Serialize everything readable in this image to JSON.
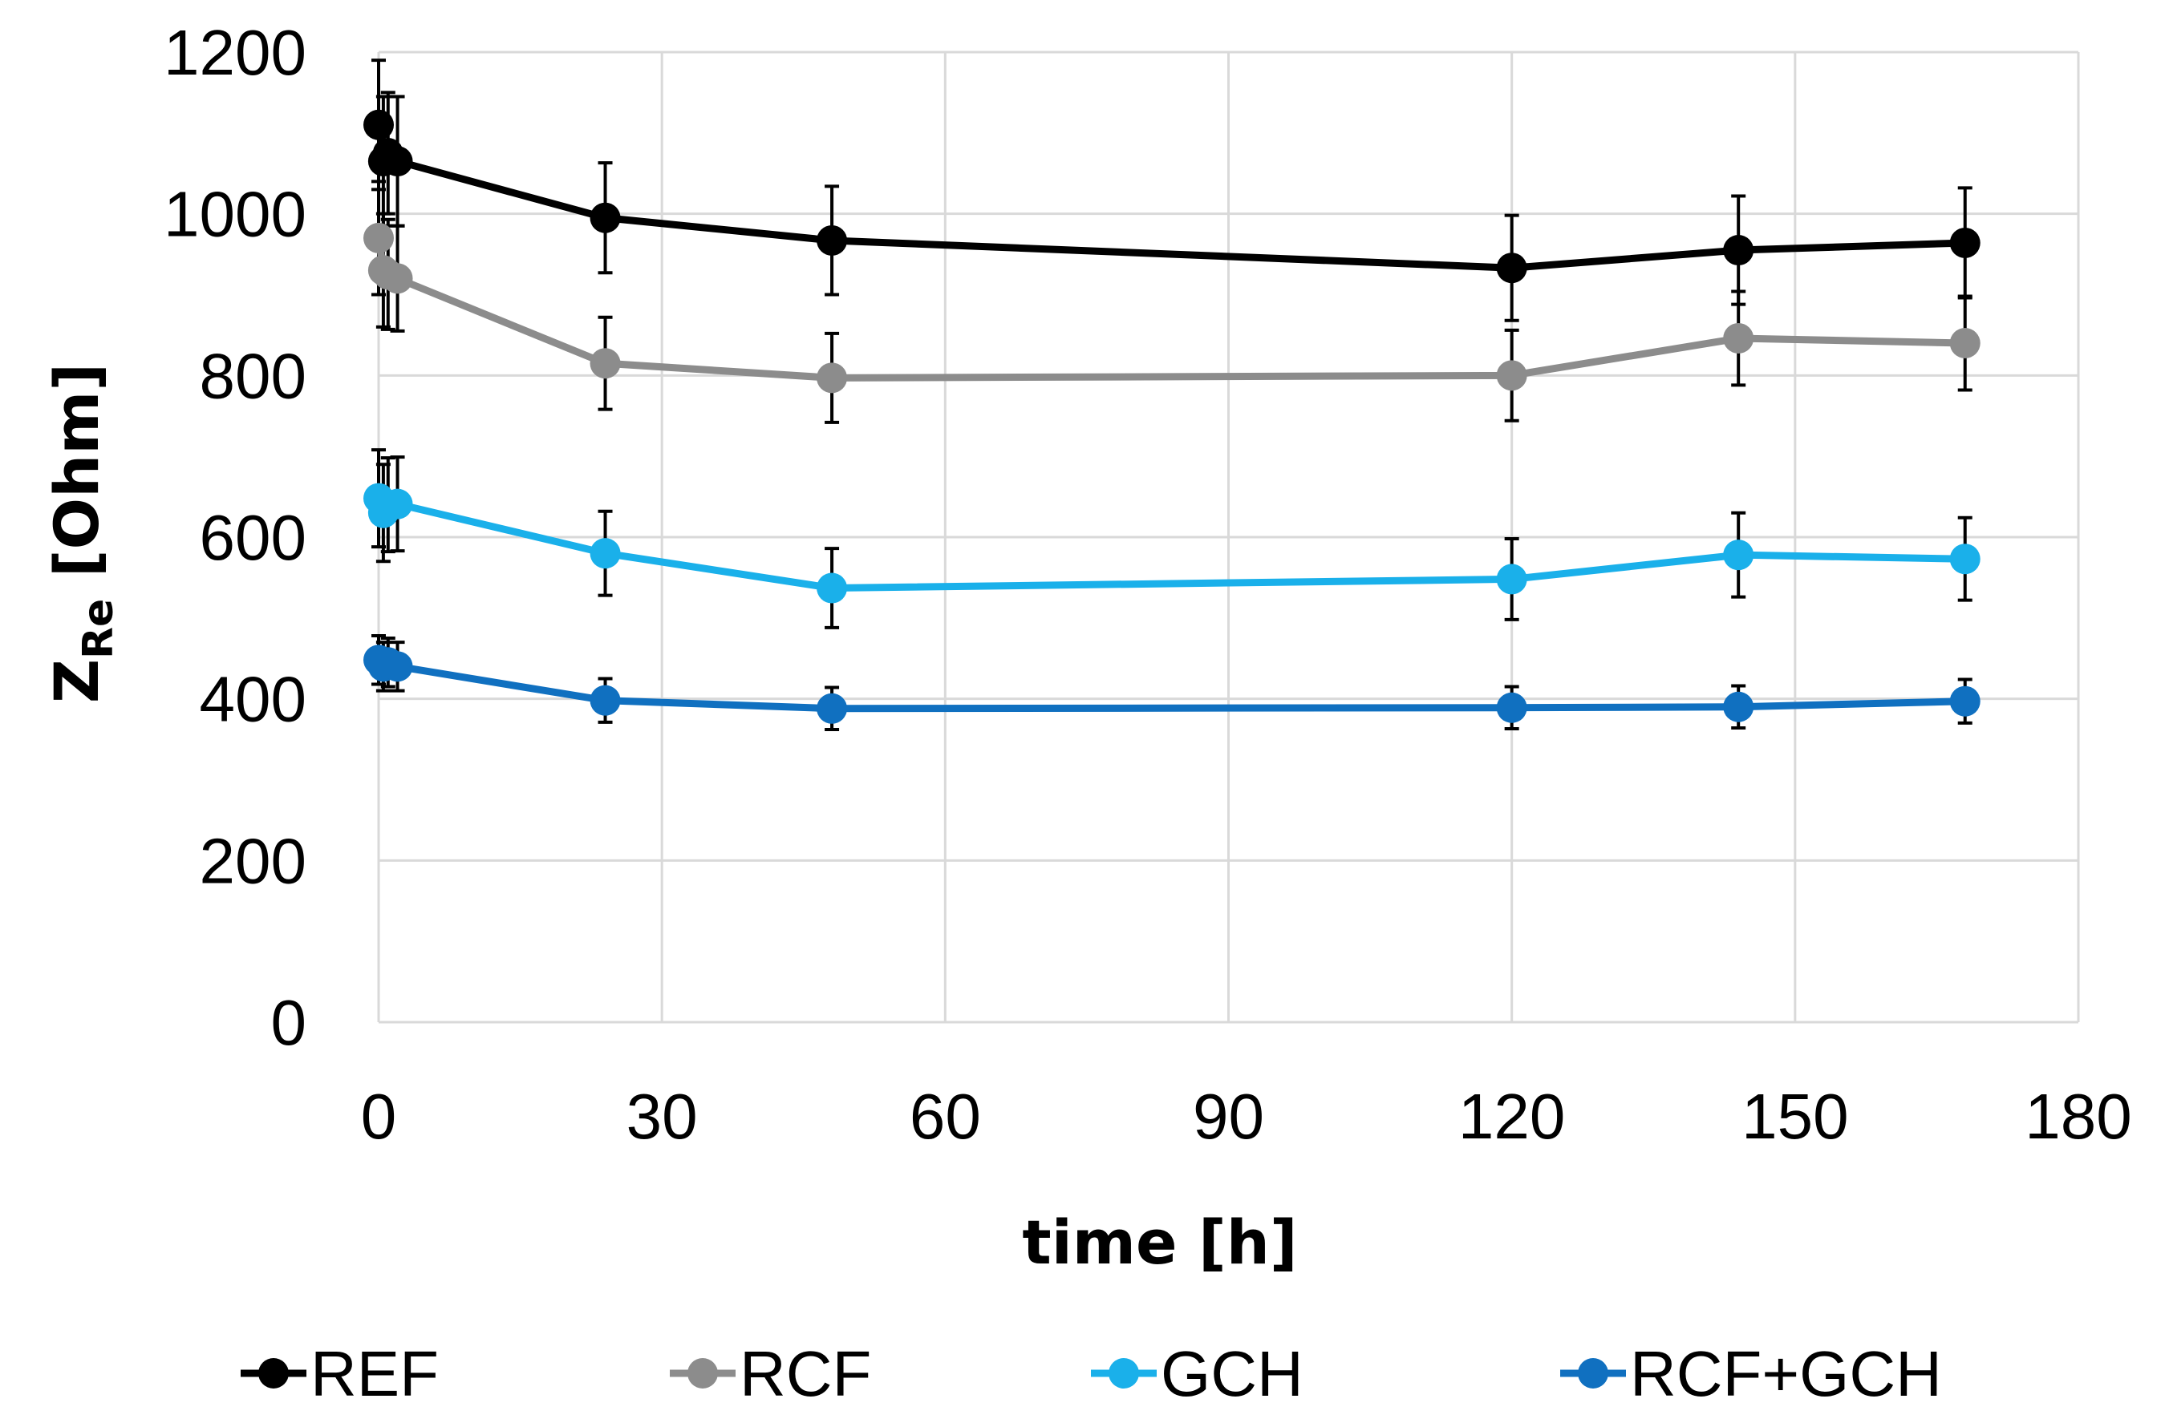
{
  "chart_data": {
    "type": "line",
    "title": "",
    "xlabel": "time [h]",
    "ylabel_main": "Z",
    "ylabel_sub": "Re",
    "ylabel_unit": " [Ohm]",
    "xlim": [
      0,
      180
    ],
    "ylim": [
      0,
      1200
    ],
    "xticks": [
      0,
      30,
      60,
      90,
      120,
      150,
      180
    ],
    "yticks": [
      0,
      200,
      400,
      600,
      800,
      1000,
      1200
    ],
    "grid": true,
    "legend_position": "bottom",
    "x": [
      0,
      0.5,
      1,
      2,
      24,
      48,
      120,
      144,
      168
    ],
    "series": [
      {
        "name": "REF",
        "color": "#000000",
        "values": [
          1110,
          1065,
          1075,
          1065,
          995,
          967,
          933,
          955,
          964
        ],
        "errors": [
          80,
          80,
          75,
          80,
          68,
          67,
          65,
          67,
          68
        ]
      },
      {
        "name": "RCF",
        "color": "#8c8c8c",
        "values": [
          970,
          930,
          925,
          920,
          815,
          797,
          800,
          846,
          840
        ],
        "errors": [
          70,
          70,
          68,
          65,
          57,
          55,
          56,
          58,
          58
        ]
      },
      {
        "name": "GCH",
        "color": "#1ab0ea",
        "values": [
          648,
          630,
          640,
          641,
          580,
          537,
          548,
          578,
          573
        ],
        "errors": [
          60,
          60,
          58,
          58,
          52,
          49,
          50,
          52,
          51
        ]
      },
      {
        "name": "RCF+GCH",
        "color": "#1070c0",
        "values": [
          448,
          440,
          445,
          440,
          398,
          388,
          389,
          390,
          397
        ],
        "errors": [
          30,
          30,
          30,
          30,
          27,
          26,
          26,
          26,
          27
        ]
      }
    ]
  }
}
